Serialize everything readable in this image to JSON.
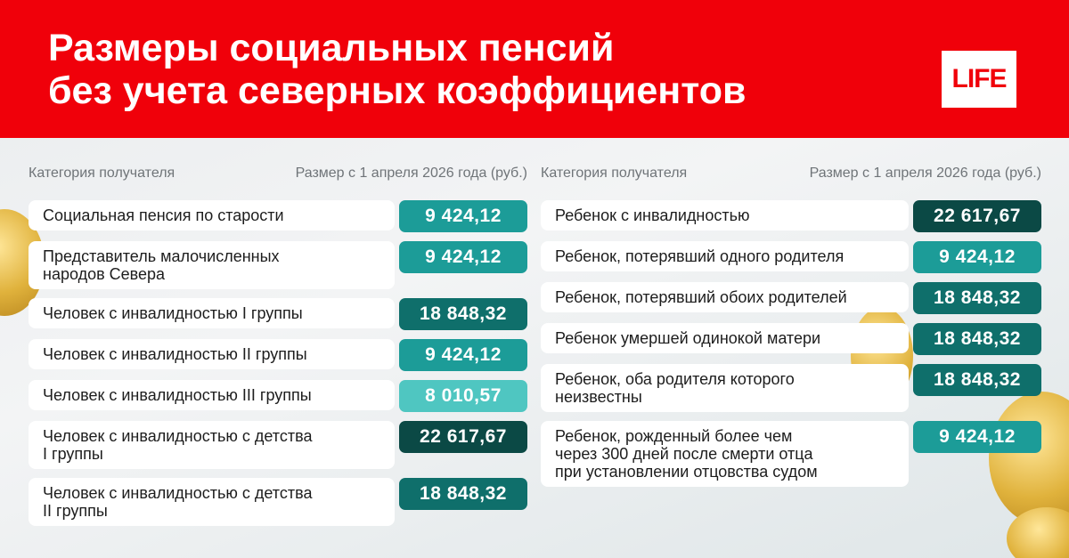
{
  "header": {
    "title": [
      "Размеры социальных пенсий",
      "без учета северных коэффициентов"
    ],
    "logo": "LIFE"
  },
  "columns": [
    {
      "headers": [
        "Категория получателя",
        "Размер с 1 апреля 2026 года (руб.)"
      ],
      "rows": [
        {
          "label": [
            "Социальная пенсия по старости"
          ],
          "value": "9 424,12",
          "color": "#1c9c98"
        },
        {
          "label": [
            "Представитель малочисленных",
            "народов Севера"
          ],
          "value": "9 424,12",
          "color": "#1c9c98"
        },
        {
          "label": [
            "Человек с инвалидностью I группы"
          ],
          "value": "18 848,32",
          "color": "#0f6f6b"
        },
        {
          "label": [
            "Человек с инвалидностью II группы"
          ],
          "value": "9 424,12",
          "color": "#1c9c98"
        },
        {
          "label": [
            "Человек с инвалидностью III группы"
          ],
          "value": "8 010,57",
          "color": "#4fc6c1"
        },
        {
          "label": [
            "Человек с инвалидностью с детства",
            "I группы"
          ],
          "value": "22 617,67",
          "color": "#0b4945"
        },
        {
          "label": [
            "Человек с инвалидностью с детства",
            "II группы"
          ],
          "value": "18 848,32",
          "color": "#0f6f6b"
        }
      ]
    },
    {
      "headers": [
        "Категория получателя",
        "Размер с 1 апреля 2026 года (руб.)"
      ],
      "rows": [
        {
          "label": [
            "Ребенок с инвалидностью"
          ],
          "value": "22 617,67",
          "color": "#0b4945"
        },
        {
          "label": [
            "Ребенок, потерявший одного родителя"
          ],
          "value": "9 424,12",
          "color": "#1c9c98"
        },
        {
          "label": [
            "Ребенок, потерявший обоих родителей"
          ],
          "value": "18 848,32",
          "color": "#0f6f6b"
        },
        {
          "label": [
            "Ребенок умершей одинокой матери"
          ],
          "value": "18 848,32",
          "color": "#0f6f6b"
        },
        {
          "label": [
            "Ребенок, оба родителя которого",
            "неизвестны"
          ],
          "value": "18 848,32",
          "color": "#0f6f6b"
        },
        {
          "label": [
            "Ребенок, рожденный более чем",
            "через 300 дней после смерти отца",
            "при установлении отцовства судом"
          ],
          "value": "9 424,12",
          "color": "#1c9c98"
        }
      ]
    }
  ]
}
